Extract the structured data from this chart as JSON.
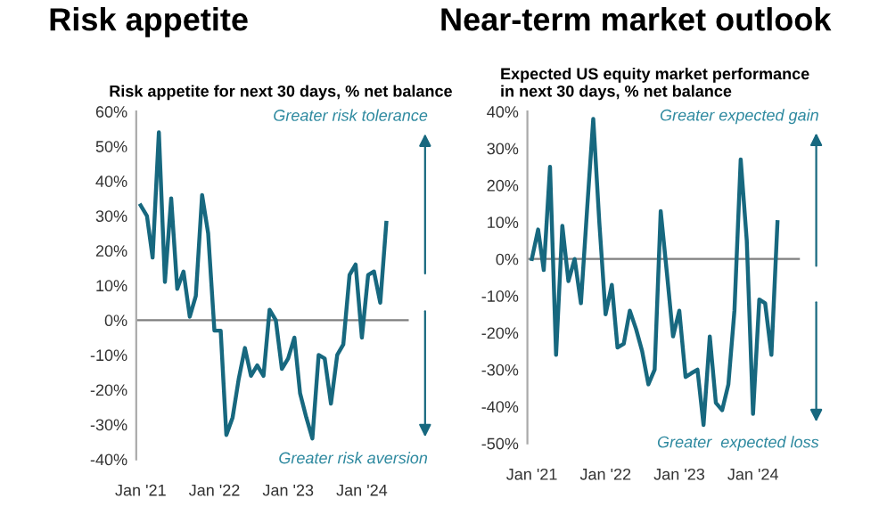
{
  "chart_data": [
    {
      "type": "line",
      "title": "Risk appetite",
      "subtitle": "Risk appetite for next 30 days, % net balance",
      "x": [
        "2021-01",
        "2021-02",
        "2021-03",
        "2021-04",
        "2021-05",
        "2021-06",
        "2021-07",
        "2021-08",
        "2021-09",
        "2021-10",
        "2021-11",
        "2021-12",
        "2022-01",
        "2022-02",
        "2022-03",
        "2022-04",
        "2022-05",
        "2022-06",
        "2022-07",
        "2022-08",
        "2022-09",
        "2022-10",
        "2022-11",
        "2022-12",
        "2023-01",
        "2023-02",
        "2023-03",
        "2023-04",
        "2023-05",
        "2023-06",
        "2023-07",
        "2023-08",
        "2023-09",
        "2023-10",
        "2023-11",
        "2023-12",
        "2024-01",
        "2024-02",
        "2024-03",
        "2024-04",
        "2024-05"
      ],
      "series": [
        {
          "color": "#17687f",
          "values": [
            33,
            30,
            18,
            54,
            11,
            35,
            9,
            14,
            1,
            7,
            36,
            25,
            -3,
            -3,
            -33,
            -28,
            -17,
            -8,
            -16,
            -13,
            -16,
            3,
            0,
            -14,
            -11,
            -5,
            -21,
            -28,
            -34,
            -10,
            -11,
            -24,
            -10,
            -7,
            13,
            16,
            -5,
            13,
            14,
            5,
            28
          ]
        }
      ],
      "xlim": [
        "2020-12-10",
        "2024-08-20"
      ],
      "xticks": [
        {
          "value": "2021-01-01",
          "label": "Jan '21"
        },
        {
          "value": "2022-01-01",
          "label": "Jan '22"
        },
        {
          "value": "2023-01-01",
          "label": "Jan '23"
        },
        {
          "value": "2024-01-01",
          "label": "Jan '24"
        }
      ],
      "ylim": [
        -40,
        60
      ],
      "yticks": [
        {
          "value": -40,
          "label": "-40%"
        },
        {
          "value": -30,
          "label": "-30%"
        },
        {
          "value": -20,
          "label": "-20%"
        },
        {
          "value": -10,
          "label": "-10%"
        },
        {
          "value": 0,
          "label": "0%"
        },
        {
          "value": 10,
          "label": "10%"
        },
        {
          "value": 20,
          "label": "20%"
        },
        {
          "value": 30,
          "label": "30%"
        },
        {
          "value": 40,
          "label": "40%"
        },
        {
          "value": 50,
          "label": "50%"
        },
        {
          "value": 60,
          "label": "60%"
        }
      ],
      "ref_lines": [
        {
          "axis": "y",
          "value": 0,
          "color": "#7f7f7f"
        }
      ],
      "annotations": [
        "Greater risk tolerance",
        "Greater risk aversion"
      ],
      "grid": false,
      "legend": false,
      "marker": "none",
      "line_style": "solid"
    },
    {
      "type": "line",
      "title": "Near-term market outlook",
      "subtitle": "Expected US equity market performance\nin next 30 days, % net balance",
      "x": [
        "2021-01",
        "2021-02",
        "2021-03",
        "2021-04",
        "2021-05",
        "2021-06",
        "2021-07",
        "2021-08",
        "2021-09",
        "2021-10",
        "2021-11",
        "2021-12",
        "2022-01",
        "2022-02",
        "2022-03",
        "2022-04",
        "2022-05",
        "2022-06",
        "2022-07",
        "2022-08",
        "2022-09",
        "2022-10",
        "2022-11",
        "2022-12",
        "2023-01",
        "2023-02",
        "2023-03",
        "2023-04",
        "2023-05",
        "2023-06",
        "2023-07",
        "2023-08",
        "2023-09",
        "2023-10",
        "2023-11",
        "2023-12",
        "2024-01",
        "2024-02",
        "2024-03",
        "2024-04",
        "2024-05"
      ],
      "series": [
        {
          "color": "#17687f",
          "values": [
            0,
            8,
            -3,
            25,
            -26,
            9,
            -6,
            0,
            -12,
            13,
            38,
            10,
            -15,
            -7,
            -24,
            -23,
            -14,
            -19,
            -25,
            -34,
            -30,
            13,
            -4,
            -21,
            -14,
            -32,
            -31,
            -30,
            -45,
            -21,
            -39,
            -41,
            -34,
            -14,
            27,
            5,
            -42,
            -11,
            -12,
            -26,
            10
          ]
        }
      ],
      "xlim": [
        "2020-12-10",
        "2024-08-20"
      ],
      "xticks": [
        {
          "value": "2021-01-01",
          "label": "Jan '21"
        },
        {
          "value": "2022-01-01",
          "label": "Jan '22"
        },
        {
          "value": "2023-01-01",
          "label": "Jan '23"
        },
        {
          "value": "2024-01-01",
          "label": "Jan '24"
        }
      ],
      "ylim": [
        -50,
        40
      ],
      "yticks": [
        {
          "value": -50,
          "label": "-50%"
        },
        {
          "value": -40,
          "label": "-40%"
        },
        {
          "value": -30,
          "label": "-30%"
        },
        {
          "value": -20,
          "label": "-20%"
        },
        {
          "value": -10,
          "label": "-10%"
        },
        {
          "value": 0,
          "label": "0%"
        },
        {
          "value": 10,
          "label": "10%"
        },
        {
          "value": 20,
          "label": "20%"
        },
        {
          "value": 30,
          "label": "30%"
        },
        {
          "value": 40,
          "label": "40%"
        }
      ],
      "ref_lines": [
        {
          "axis": "y",
          "value": 0,
          "color": "#7f7f7f"
        }
      ],
      "annotations": [
        "Greater expected gain",
        "Greater  expected loss"
      ],
      "grid": false,
      "legend": false,
      "marker": "none",
      "line_style": "solid"
    }
  ]
}
